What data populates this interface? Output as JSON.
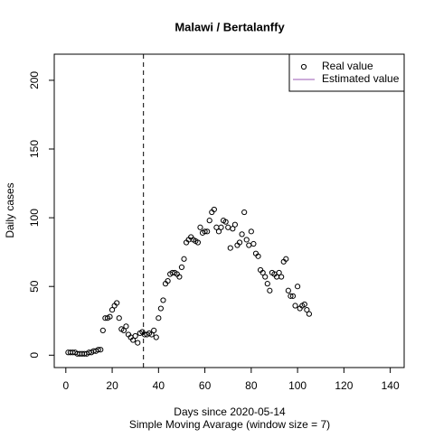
{
  "chart_data": {
    "type": "scatter",
    "title": "Malawi / Bertalanffy",
    "xlabel": "Days since 2020-05-14",
    "subtitle": "Simple Moving Avarage (window size = 7)",
    "ylabel": "Daily cases",
    "x": [
      1,
      2,
      3,
      4,
      5,
      6,
      7,
      8,
      9,
      10,
      11,
      12,
      13,
      14,
      15,
      16,
      17,
      18,
      19,
      20,
      21,
      22,
      23,
      24,
      25,
      26,
      27,
      28,
      29,
      30,
      31,
      32,
      33,
      34,
      35,
      36,
      37,
      38,
      39,
      40,
      41,
      42,
      43,
      44,
      45,
      46,
      47,
      48,
      49,
      50,
      51,
      52,
      53,
      54,
      55,
      56,
      57,
      58,
      59,
      60,
      61,
      62,
      63,
      64,
      65,
      66,
      67,
      68,
      69,
      70,
      71,
      72,
      73,
      74,
      75,
      76,
      77,
      78,
      79,
      80,
      81,
      82,
      83,
      84,
      85,
      86,
      87,
      88,
      89,
      90,
      91,
      92,
      93,
      94,
      95,
      96,
      97,
      98,
      99,
      100,
      101,
      102,
      103,
      104,
      105
    ],
    "series": [
      {
        "name": "Real value",
        "color": "#000000",
        "values": [
          2,
          2,
          2,
          2,
          1,
          1,
          1,
          1,
          1,
          2,
          2,
          3,
          3,
          4,
          4,
          18,
          27,
          27,
          28,
          33,
          36,
          38,
          27,
          19,
          18,
          21,
          15,
          13,
          11,
          14,
          9,
          16,
          17,
          15,
          15,
          16,
          15,
          18,
          13,
          27,
          34,
          40,
          52,
          54,
          59,
          60,
          60,
          59,
          57,
          64,
          70,
          82,
          84,
          86,
          84,
          83,
          82,
          93,
          89,
          90,
          90,
          98,
          104,
          106,
          93,
          90,
          93,
          98,
          97,
          93,
          78,
          92,
          95,
          80,
          82,
          88,
          104,
          84,
          80,
          90,
          81,
          74,
          72,
          62,
          60,
          57,
          52,
          47,
          60,
          59,
          57,
          60,
          57,
          68,
          70,
          47,
          43,
          43,
          36,
          50,
          34,
          36,
          37,
          33,
          30
        ]
      }
    ],
    "legend": [
      {
        "name": "Real value",
        "color": "#000000",
        "marker": "circle"
      },
      {
        "name": "Estimated value",
        "color": "#9b59b6",
        "marker": "line"
      }
    ],
    "legend_position": "top-right",
    "vline": 33.5,
    "xlim": [
      -5,
      146
    ],
    "xticks": [
      0,
      20,
      40,
      60,
      80,
      100,
      120,
      140
    ],
    "ylim": [
      -9,
      219
    ],
    "yticks": [
      0,
      50,
      100,
      150,
      200
    ]
  }
}
